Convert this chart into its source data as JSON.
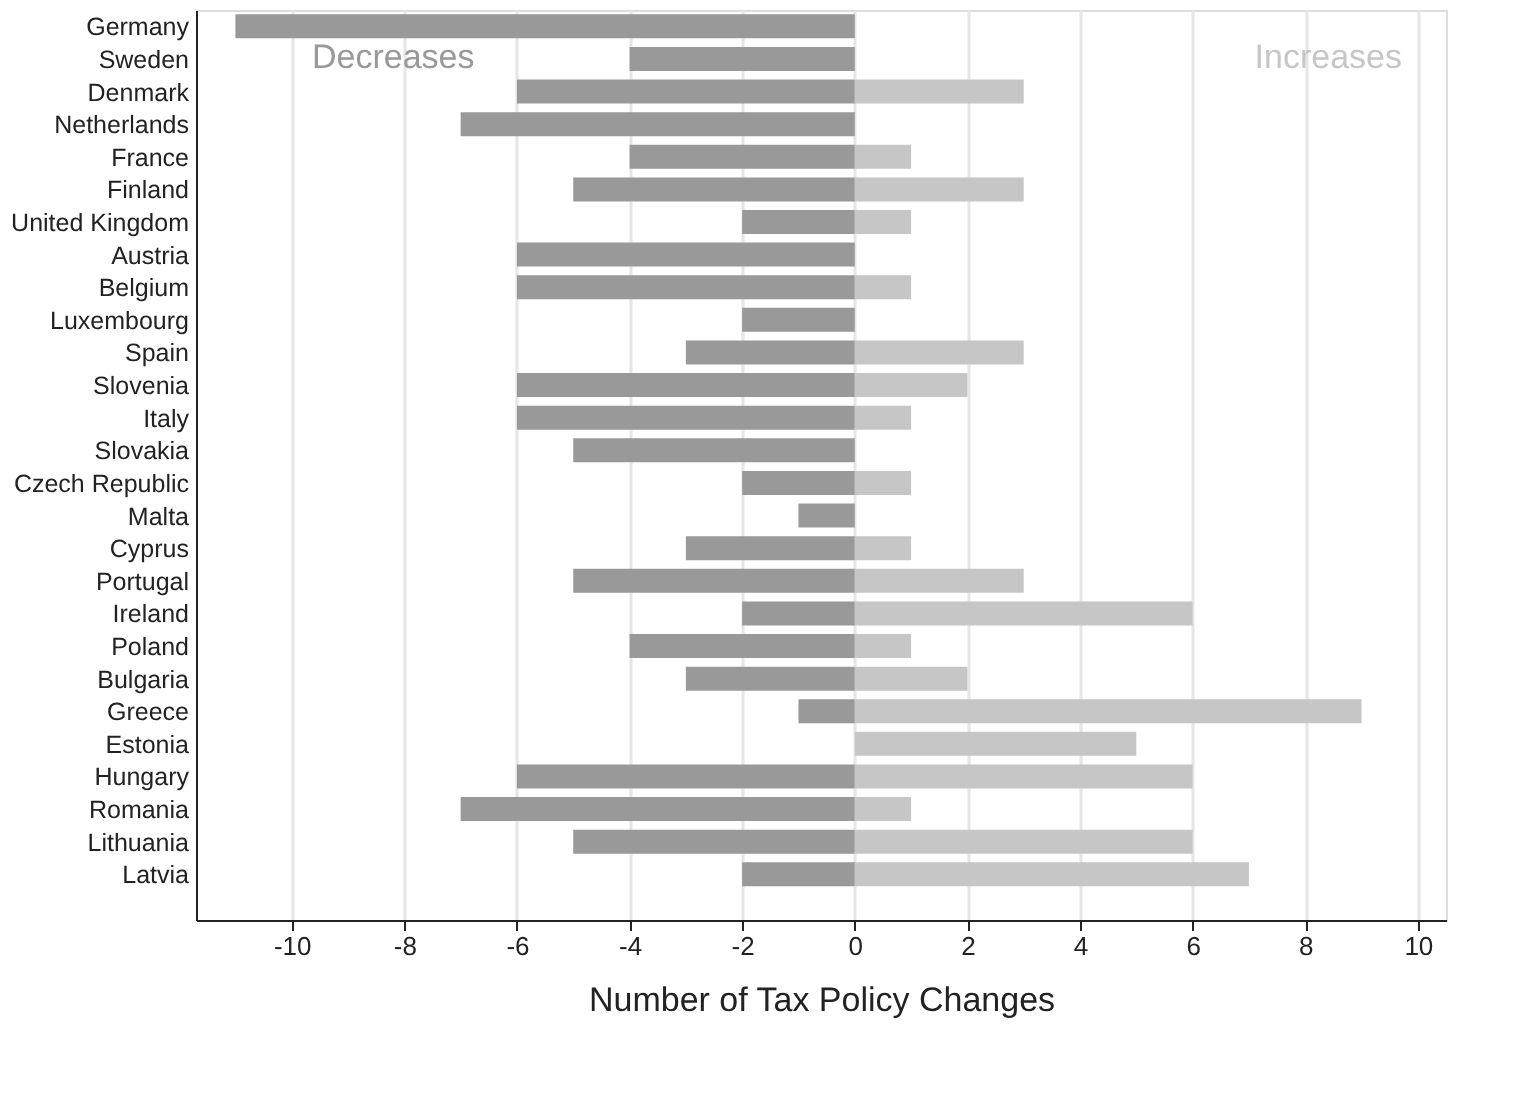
{
  "chart_data": {
    "type": "bar",
    "orientation": "horizontal",
    "xlabel": "Number of Tax Policy Changes",
    "categories": [
      "Germany",
      "Sweden",
      "Denmark",
      "Netherlands",
      "France",
      "Finland",
      "United Kingdom",
      "Austria",
      "Belgium",
      "Luxembourg",
      "Spain",
      "Slovenia",
      "Italy",
      "Slovakia",
      "Czech Republic",
      "Malta",
      "Cyprus",
      "Portugal",
      "Ireland",
      "Poland",
      "Bulgaria",
      "Greece",
      "Estonia",
      "Hungary",
      "Romania",
      "Lithuania",
      "Latvia"
    ],
    "series": [
      {
        "name": "Decreases",
        "color": "#999999",
        "values": [
          -11,
          -4,
          -6,
          -7,
          -4,
          -5,
          -2,
          -6,
          -6,
          -2,
          -3,
          -6,
          -6,
          -5,
          -2,
          -1,
          -3,
          -5,
          -2,
          -4,
          -3,
          -1,
          0,
          -6,
          -7,
          -5,
          -2
        ]
      },
      {
        "name": "Increases",
        "color": "#c6c6c6",
        "values": [
          0,
          0,
          3,
          0,
          1,
          3,
          1,
          0,
          1,
          0,
          3,
          2,
          1,
          0,
          1,
          0,
          1,
          3,
          6,
          1,
          2,
          9,
          5,
          6,
          1,
          6,
          7
        ]
      }
    ],
    "stacked": true,
    "xlim": [
      -11.7,
      10.5
    ],
    "xticks": [
      -10,
      -8,
      -6,
      -4,
      -2,
      0,
      2,
      4,
      6,
      8,
      10
    ],
    "grid": "x",
    "legend": false
  }
}
